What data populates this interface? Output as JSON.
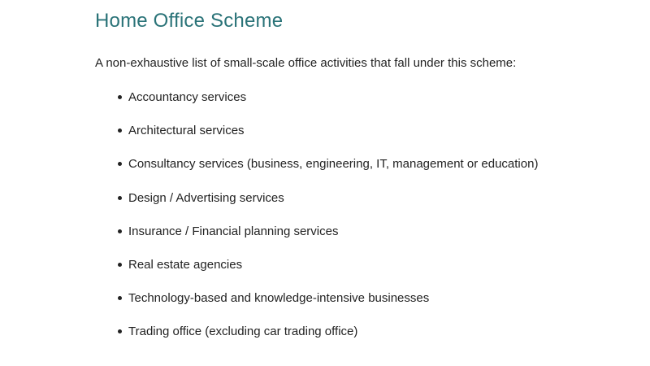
{
  "page": {
    "title": "Home Office Scheme",
    "intro": "A non-exhaustive list of small-scale office activities that fall under this scheme:"
  },
  "activities": [
    "Accountancy services",
    "Architectural services",
    "Consultancy services (business, engineering, IT, management or education)",
    "Design / Advertising services",
    "Insurance / Financial planning services",
    "Real estate agencies",
    "Technology-based and knowledge-intensive businesses",
    "Trading office (excluding car trading office)"
  ],
  "colors": {
    "title": "#2a7378",
    "text": "#222222"
  }
}
